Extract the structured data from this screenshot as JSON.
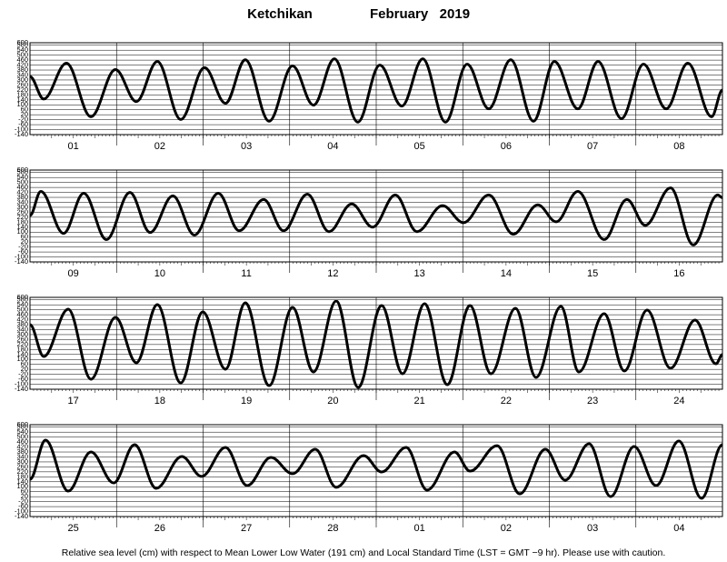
{
  "header": {
    "station": "Ketchikan",
    "month": "February   2019"
  },
  "footer": "Relative sea level (cm) with respect to Mean Lower Low Water (191 cm) and Local Standard Time (LST = GMT −9 hr). Please use with caution.",
  "chart_data": [
    {
      "type": "line",
      "color": "#000000",
      "xlim": [
        0,
        192
      ],
      "ylim": [
        -140,
        600
      ],
      "yticks": [
        -140,
        -100,
        -60,
        -20,
        20,
        60,
        100,
        140,
        180,
        220,
        260,
        300,
        340,
        380,
        420,
        460,
        500,
        540,
        580,
        600
      ],
      "grid": true,
      "categories": [
        "01",
        "02",
        "03",
        "04",
        "05",
        "06",
        "07",
        "08"
      ],
      "x": [
        0,
        3.8,
        10.1,
        16.9,
        23.7,
        29.5,
        35.3,
        41.8,
        48.4,
        54.2,
        59.7,
        66.3,
        72.8,
        78.6,
        84.4,
        90.9,
        97.0,
        103.1,
        108.9,
        115.2,
        121.2,
        127.2,
        133.3,
        139.6,
        145.4,
        151.9,
        157.5,
        164.0,
        170.1,
        176.4,
        182.4,
        189.0,
        192
      ],
      "values": [
        327,
        147,
        435,
        4,
        384,
        126,
        449,
        -18,
        399,
        112,
        463,
        -32,
        413,
        97,
        470,
        -39,
        420,
        90,
        470,
        -39,
        427,
        68,
        463,
        -32,
        449,
        68,
        449,
        -11,
        427,
        68,
        435,
        4,
        219
      ]
    },
    {
      "type": "line",
      "color": "#000000",
      "xlim": [
        0,
        192
      ],
      "ylim": [
        -140,
        600
      ],
      "yticks": [
        -140,
        -100,
        -60,
        -20,
        20,
        60,
        100,
        140,
        180,
        220,
        260,
        300,
        340,
        380,
        420,
        460,
        500,
        540,
        580,
        600
      ],
      "grid": true,
      "categories": [
        "09",
        "10",
        "11",
        "12",
        "13",
        "14",
        "15",
        "16"
      ],
      "x": [
        0,
        3.0,
        9.3,
        14.9,
        21.2,
        27.7,
        33.3,
        39.6,
        45.6,
        52.2,
        58.0,
        64.8,
        70.3,
        76.9,
        82.9,
        89.2,
        95.0,
        101.3,
        107.3,
        114.4,
        120.2,
        127.2,
        134.0,
        140.8,
        145.9,
        151.9,
        159.2,
        165.5,
        170.6,
        177.6,
        183.9,
        190.7,
        192
      ],
      "values": [
        234,
        428,
        90,
        413,
        40,
        420,
        97,
        392,
        76,
        413,
        111,
        363,
        111,
        406,
        104,
        327,
        140,
        399,
        104,
        313,
        176,
        399,
        83,
        320,
        183,
        428,
        40,
        363,
        155,
        456,
        -3,
        399,
        377
      ]
    },
    {
      "type": "line",
      "color": "#000000",
      "xlim": [
        0,
        192
      ],
      "ylim": [
        -140,
        600
      ],
      "yticks": [
        -140,
        -100,
        -60,
        -20,
        20,
        60,
        100,
        140,
        180,
        220,
        260,
        300,
        340,
        380,
        420,
        460,
        500,
        540,
        580,
        600
      ],
      "grid": true,
      "categories": [
        "17",
        "18",
        "19",
        "20",
        "21",
        "22",
        "23",
        "24"
      ],
      "x": [
        0,
        3.8,
        10.6,
        16.9,
        23.7,
        29.5,
        35.3,
        41.8,
        47.9,
        54.2,
        59.7,
        66.3,
        72.8,
        78.6,
        84.9,
        91.0,
        97.5,
        103.3,
        109.4,
        115.7,
        122.0,
        127.8,
        134.6,
        140.3,
        147.2,
        152.2,
        159.2,
        164.8,
        171.1,
        177.6,
        184.4,
        190.2,
        192
      ],
      "values": [
        380,
        124,
        505,
        -59,
        439,
        73,
        541,
        -89,
        483,
        21,
        556,
        -111,
        519,
        -1,
        571,
        -125,
        534,
        -15,
        549,
        -103,
        534,
        -15,
        512,
        -45,
        527,
        -1,
        468,
        7,
        497,
        29,
        417,
        65,
        139
      ]
    },
    {
      "type": "line",
      "color": "#000000",
      "xlim": [
        0,
        192
      ],
      "ylim": [
        -140,
        600
      ],
      "yticks": [
        -140,
        -100,
        -60,
        -20,
        20,
        60,
        100,
        140,
        180,
        220,
        260,
        300,
        340,
        380,
        420,
        460,
        500,
        540,
        580,
        600
      ],
      "grid": true,
      "categories": [
        "25",
        "26",
        "27",
        "28",
        "01",
        "02",
        "03",
        "04"
      ],
      "x": [
        0,
        4.3,
        10.6,
        16.9,
        23.2,
        29.0,
        35.0,
        42.1,
        47.6,
        54.2,
        60.2,
        66.8,
        72.8,
        79.1,
        84.9,
        92.5,
        97.5,
        104.3,
        110.1,
        117.7,
        122.0,
        129.5,
        135.8,
        142.9,
        148.4,
        155.0,
        161.0,
        167.5,
        173.6,
        179.9,
        186.2,
        192
      ],
      "values": [
        160,
        475,
        65,
        380,
        131,
        439,
        87,
        344,
        183,
        417,
        109,
        336,
        205,
        402,
        95,
        351,
        219,
        417,
        73,
        380,
        226,
        431,
        43,
        402,
        153,
        446,
        21,
        424,
        109,
        468,
        7,
        439
      ]
    }
  ]
}
